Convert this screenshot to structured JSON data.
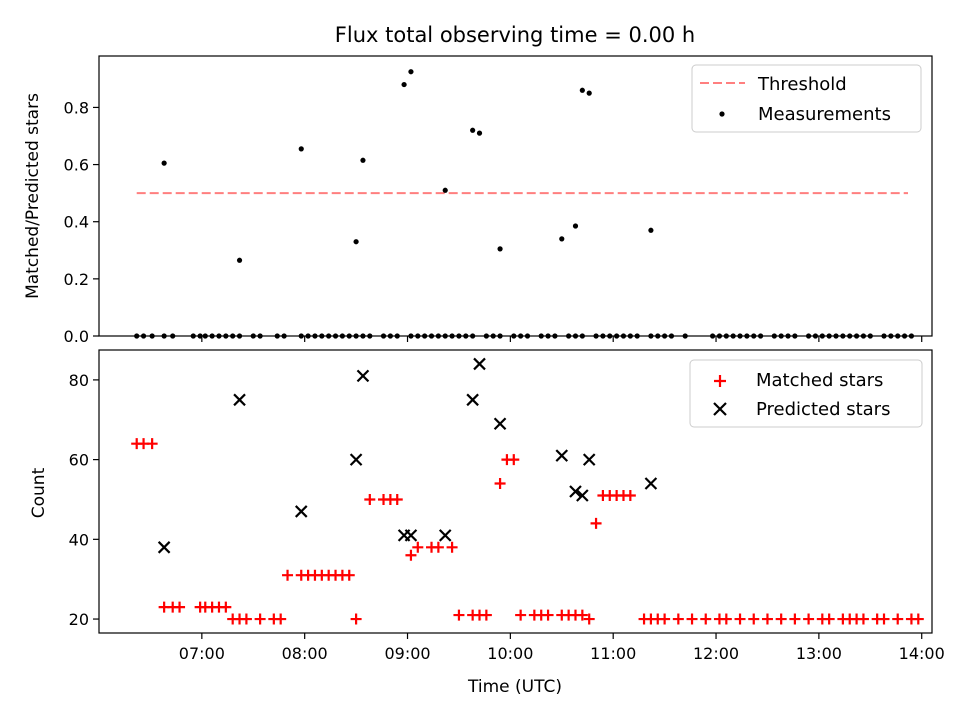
{
  "figure": {
    "title": "Flux total observing time = 0.00 h"
  },
  "chart_data": [
    {
      "type": "scatter",
      "ylabel": "Matched/Predicted stars",
      "ylim": [
        0,
        0.98
      ],
      "yticks": [
        "0.0",
        "0.2",
        "0.4",
        "0.6",
        "0.8"
      ],
      "xlim": [
        "06:00",
        "14:06"
      ],
      "xticks": [
        "07:00",
        "08:00",
        "09:00",
        "10:00",
        "11:00",
        "12:00",
        "13:00",
        "14:00"
      ],
      "show_xticklabels": false,
      "legend": {
        "position": "top-right",
        "entries": [
          "Threshold",
          "Measurements"
        ]
      },
      "threshold": {
        "name": "Threshold",
        "value": 0.5,
        "x": [
          "06:22",
          "13:52"
        ],
        "color": "#ff7f7f",
        "style": "dashed"
      },
      "measurements": {
        "name": "Measurements",
        "color": "#000000",
        "x": [
          "06:22",
          "06:26",
          "06:31",
          "06:38",
          "06:43",
          "06:55",
          "06:59",
          "07:02",
          "07:06",
          "07:10",
          "07:14",
          "07:18",
          "07:22",
          "07:30",
          "07:34",
          "07:44",
          "07:48",
          "07:58",
          "08:02",
          "08:06",
          "08:10",
          "08:14",
          "08:18",
          "08:22",
          "08:26",
          "08:30",
          "08:34",
          "08:38",
          "08:46",
          "08:50",
          "08:54",
          "09:02",
          "09:06",
          "09:10",
          "09:14",
          "09:18",
          "09:22",
          "09:26",
          "09:30",
          "09:34",
          "09:38",
          "09:46",
          "09:50",
          "09:54",
          "10:02",
          "10:06",
          "10:10",
          "10:18",
          "10:22",
          "10:26",
          "10:34",
          "10:38",
          "10:42",
          "10:50",
          "10:54",
          "10:58",
          "11:02",
          "11:06",
          "11:10",
          "11:14",
          "11:22",
          "11:26",
          "11:30",
          "11:34",
          "11:42",
          "11:58",
          "12:02",
          "12:06",
          "12:10",
          "12:14",
          "12:18",
          "12:22",
          "12:26",
          "12:34",
          "12:38",
          "12:42",
          "12:46",
          "12:54",
          "12:58",
          "13:02",
          "13:06",
          "13:10",
          "13:14",
          "13:18",
          "13:22",
          "13:26",
          "13:30",
          "13:38",
          "13:42",
          "13:46",
          "13:50",
          "13:54",
          "06:38",
          "07:22",
          "07:58",
          "08:30",
          "08:34",
          "08:58",
          "09:02",
          "09:22",
          "09:38",
          "09:42",
          "09:54",
          "10:30",
          "10:38",
          "10:42",
          "10:46",
          "11:22"
        ],
        "y": [
          0,
          0,
          0,
          0,
          0,
          0,
          0,
          0,
          0,
          0,
          0,
          0,
          0,
          0,
          0,
          0,
          0,
          0,
          0,
          0,
          0,
          0,
          0,
          0,
          0,
          0,
          0,
          0,
          0,
          0,
          0,
          0,
          0,
          0,
          0,
          0,
          0,
          0,
          0,
          0,
          0,
          0,
          0,
          0,
          0,
          0,
          0,
          0,
          0,
          0,
          0,
          0,
          0,
          0,
          0,
          0,
          0,
          0,
          0,
          0,
          0,
          0,
          0,
          0,
          0,
          0,
          0,
          0,
          0,
          0,
          0,
          0,
          0,
          0,
          0,
          0,
          0,
          0,
          0,
          0,
          0,
          0,
          0,
          0,
          0,
          0,
          0,
          0,
          0,
          0,
          0,
          0,
          0.605,
          0.265,
          0.655,
          0.33,
          0.615,
          0.88,
          0.925,
          0.51,
          0.72,
          0.71,
          0.305,
          0.34,
          0.385,
          0.86,
          0.85,
          0.37
        ]
      }
    },
    {
      "type": "scatter",
      "xlabel": "Time (UTC)",
      "ylabel": "Count",
      "ylim": [
        16.5,
        87.5
      ],
      "yticks": [
        "20",
        "40",
        "60",
        "80"
      ],
      "xlim": [
        "06:00",
        "14:06"
      ],
      "xticks": [
        "07:00",
        "08:00",
        "09:00",
        "10:00",
        "11:00",
        "12:00",
        "13:00",
        "14:00"
      ],
      "legend": {
        "position": "top-right",
        "entries": [
          "Matched stars",
          "Predicted stars"
        ]
      },
      "series": [
        {
          "name": "Matched stars",
          "marker": "+",
          "color": "#ff0000",
          "x": [
            "06:22",
            "06:26",
            "06:31",
            "06:38",
            "06:43",
            "06:47",
            "06:59",
            "07:02",
            "07:06",
            "07:10",
            "07:14",
            "07:18",
            "07:22",
            "07:26",
            "07:34",
            "07:42",
            "07:46",
            "07:50",
            "07:58",
            "08:02",
            "08:06",
            "08:10",
            "08:14",
            "08:18",
            "08:22",
            "08:26",
            "08:30",
            "08:38",
            "08:46",
            "08:50",
            "08:54",
            "09:02",
            "09:06",
            "09:14",
            "09:18",
            "09:26",
            "09:30",
            "09:38",
            "09:42",
            "09:46",
            "09:54",
            "09:58",
            "10:02",
            "10:06",
            "10:14",
            "10:18",
            "10:22",
            "10:30",
            "10:34",
            "10:38",
            "10:42",
            "10:46",
            "10:50",
            "10:54",
            "10:58",
            "11:02",
            "11:06",
            "11:10",
            "11:18",
            "11:22",
            "11:26",
            "11:30",
            "11:38",
            "11:46",
            "11:54",
            "12:02",
            "12:06",
            "12:14",
            "12:22",
            "12:30",
            "12:38",
            "12:46",
            "12:54",
            "13:02",
            "13:06",
            "13:14",
            "13:18",
            "13:22",
            "13:26",
            "13:34",
            "13:38",
            "13:46",
            "13:54",
            "13:58"
          ],
          "y": [
            64,
            64,
            64,
            23,
            23,
            23,
            23,
            23,
            23,
            23,
            23,
            20,
            20,
            20,
            20,
            20,
            20,
            31,
            31,
            31,
            31,
            31,
            31,
            31,
            31,
            31,
            20,
            50,
            50,
            50,
            50,
            36,
            38,
            38,
            38,
            38,
            21,
            21,
            21,
            21,
            54,
            60,
            60,
            21,
            21,
            21,
            21,
            21,
            21,
            21,
            21,
            20,
            44,
            51,
            51,
            51,
            51,
            51,
            20,
            20,
            20,
            20,
            20,
            20,
            20,
            20,
            20,
            20,
            20,
            20,
            20,
            20,
            20,
            20,
            20,
            20,
            20,
            20,
            20,
            20,
            20,
            20,
            20,
            20
          ]
        },
        {
          "name": "Predicted stars",
          "marker": "x",
          "color": "#000000",
          "x": [
            "06:38",
            "07:22",
            "07:58",
            "08:30",
            "08:34",
            "08:58",
            "09:02",
            "09:22",
            "09:38",
            "09:42",
            "09:54",
            "10:30",
            "10:38",
            "10:42",
            "10:46",
            "11:22"
          ],
          "y": [
            38,
            75,
            47,
            60,
            81,
            41,
            41,
            41,
            75,
            84,
            69,
            61,
            52,
            51,
            60,
            54
          ]
        }
      ]
    }
  ]
}
